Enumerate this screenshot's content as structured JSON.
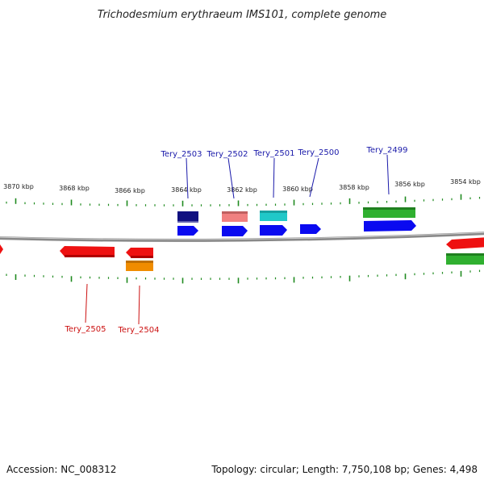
{
  "title": "Trichodesmium erythraeum IMS101, complete genome",
  "footer": {
    "accession": "Accession: NC_008312",
    "topology": "Topology: circular; Length: 7,750,108 bp; Genes: 4,498"
  },
  "colors": {
    "backbone": "#888888",
    "tick": "#1f8a1f",
    "forward_label": "#1a1aaa",
    "reverse_label": "#cc1111"
  },
  "scale_labels": [
    "3870 kbp",
    "3868 kbp",
    "3866 kbp",
    "3864 kbp",
    "3862 kbp",
    "3860 kbp",
    "3858 kbp",
    "3856 kbp",
    "3854 kbp"
  ],
  "gene_labels": {
    "forward": [
      "Tery_2503",
      "Tery_2502",
      "Tery_2501",
      "Tery_2500",
      "Tery_2499"
    ],
    "reverse": [
      "Tery_2505",
      "Tery_2504"
    ]
  },
  "feature_colors": {
    "navy": "#101080",
    "salmon": "#f08080",
    "cyan": "#20c8c8",
    "green": "#30b030",
    "blue": "#0a0af0",
    "red": "#ee1111",
    "orange": "#f08c00"
  }
}
